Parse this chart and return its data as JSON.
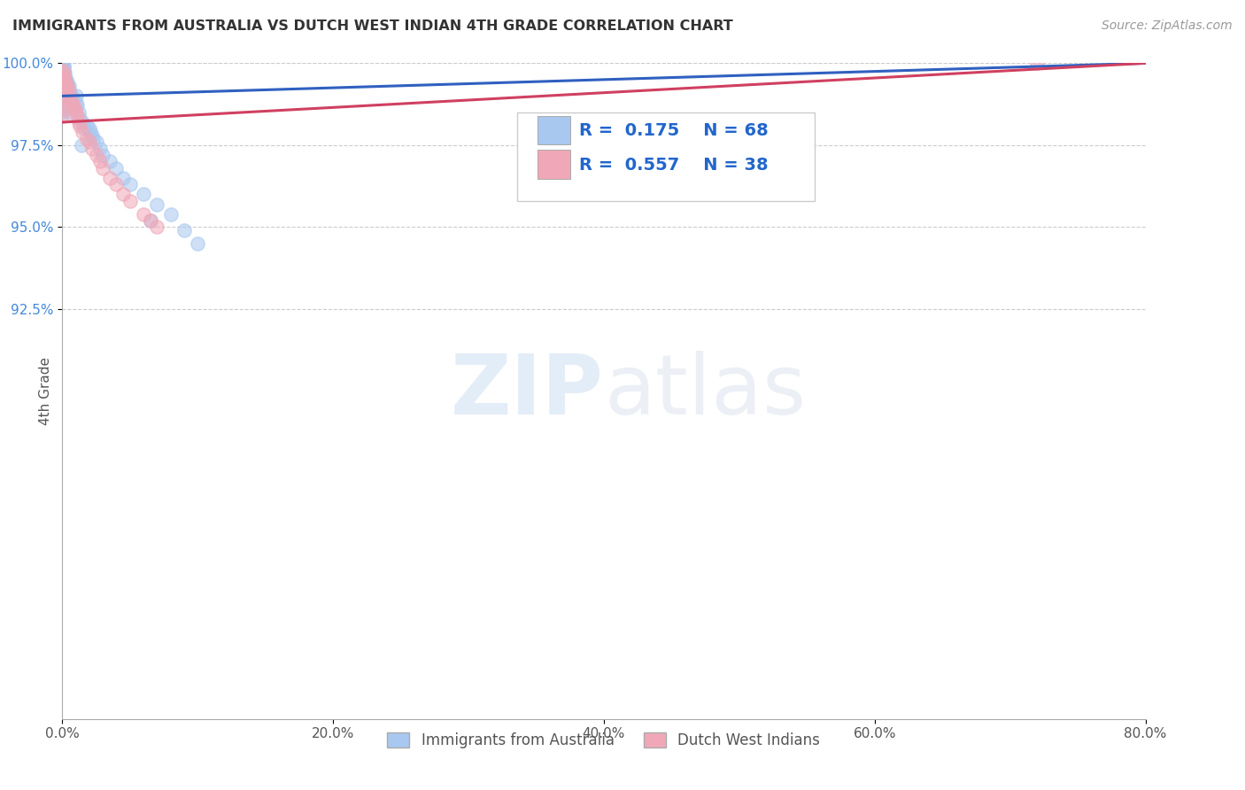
{
  "title": "IMMIGRANTS FROM AUSTRALIA VS DUTCH WEST INDIAN 4TH GRADE CORRELATION CHART",
  "source": "Source: ZipAtlas.com",
  "ylabel": "4th Grade",
  "xmin": 0.0,
  "xmax": 80.0,
  "ymin": 80.0,
  "ymax": 100.0,
  "x_ticks": [
    0.0,
    20.0,
    40.0,
    60.0,
    80.0
  ],
  "y_ticks": [
    92.5,
    95.0,
    97.5,
    100.0
  ],
  "x_tick_labels": [
    "0.0%",
    "20.0%",
    "40.0%",
    "60.0%",
    "80.0%"
  ],
  "y_tick_labels": [
    "92.5%",
    "95.0%",
    "97.5%",
    "100.0%"
  ],
  "legend_entries": [
    "Immigrants from Australia",
    "Dutch West Indians"
  ],
  "legend_r": [
    0.175,
    0.557
  ],
  "legend_n": [
    68,
    38
  ],
  "blue_color": "#a8c8f0",
  "pink_color": "#f0a8b8",
  "blue_line_color": "#3060c0",
  "pink_line_color": "#d04060",
  "watermark_zip": "ZIP",
  "watermark_atlas": "atlas",
  "blue_x": [
    0.0,
    0.0,
    0.0,
    0.0,
    0.0,
    0.0,
    0.0,
    0.0,
    0.0,
    0.0,
    0.0,
    0.0,
    0.1,
    0.1,
    0.1,
    0.1,
    0.1,
    0.2,
    0.2,
    0.2,
    0.2,
    0.3,
    0.3,
    0.4,
    0.5,
    0.5,
    0.6,
    0.7,
    1.0,
    1.0,
    1.1,
    1.2,
    1.3,
    1.5,
    1.6,
    2.0,
    2.2,
    2.5,
    2.8,
    3.0,
    3.5,
    4.0,
    4.5,
    5.0,
    6.0,
    7.0,
    8.0,
    1.8,
    2.1,
    2.3,
    6.5,
    9.0,
    10.0,
    0.0,
    0.0,
    0.0,
    0.0,
    0.0,
    0.0,
    0.1,
    0.1,
    0.1,
    0.2,
    0.3,
    0.4,
    0.5,
    0.6,
    1.4
  ],
  "blue_y": [
    100.0,
    100.0,
    100.0,
    100.0,
    100.0,
    100.0,
    100.0,
    100.0,
    100.0,
    100.0,
    100.0,
    100.0,
    99.9,
    99.9,
    99.8,
    99.7,
    99.6,
    99.7,
    99.6,
    99.5,
    99.4,
    99.5,
    99.3,
    99.4,
    99.3,
    99.2,
    99.1,
    99.0,
    99.0,
    98.8,
    98.7,
    98.5,
    98.3,
    98.2,
    98.0,
    98.0,
    97.8,
    97.6,
    97.4,
    97.2,
    97.0,
    96.8,
    96.5,
    96.3,
    96.0,
    95.7,
    95.4,
    98.1,
    97.9,
    97.7,
    95.2,
    94.9,
    94.5,
    99.5,
    99.3,
    99.1,
    98.9,
    98.7,
    98.5,
    99.0,
    98.8,
    98.6,
    99.2,
    99.0,
    98.9,
    98.7,
    98.5,
    97.5
  ],
  "pink_x": [
    0.0,
    0.0,
    0.0,
    0.0,
    0.0,
    0.0,
    0.0,
    0.0,
    0.2,
    0.3,
    0.4,
    0.5,
    0.6,
    0.7,
    0.8,
    0.9,
    1.0,
    1.1,
    1.2,
    1.3,
    1.5,
    1.8,
    2.0,
    2.2,
    2.5,
    2.8,
    3.0,
    3.5,
    4.0,
    4.5,
    5.0,
    6.0,
    6.5,
    7.0,
    0.1,
    0.2,
    0.4,
    72.0
  ],
  "pink_y": [
    99.8,
    99.6,
    99.4,
    99.2,
    99.0,
    98.8,
    98.6,
    98.4,
    99.5,
    99.3,
    99.2,
    99.1,
    98.9,
    98.8,
    98.7,
    98.6,
    98.5,
    98.4,
    98.2,
    98.1,
    97.9,
    97.7,
    97.6,
    97.4,
    97.2,
    97.0,
    96.8,
    96.5,
    96.3,
    96.0,
    95.8,
    95.4,
    95.2,
    95.0,
    99.7,
    99.5,
    99.3,
    100.0
  ],
  "blue_trend_x0": 0.0,
  "blue_trend_y0": 99.0,
  "blue_trend_x1": 80.0,
  "blue_trend_y1": 100.0,
  "pink_trend_x0": 0.0,
  "pink_trend_y0": 98.2,
  "pink_trend_x1": 80.0,
  "pink_trend_y1": 100.0
}
